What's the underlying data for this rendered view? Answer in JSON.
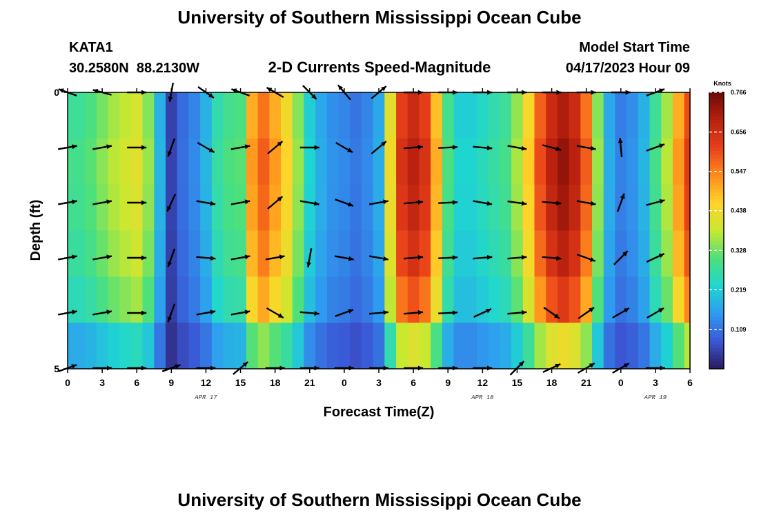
{
  "header": {
    "title": "University of Southern Mississippi Ocean Cube",
    "station_id": "KATA1",
    "station_coords": "30.2580N  88.2130W",
    "plot_title": "2-D Currents Speed-Magnitude",
    "model_start_label": "Model Start Time",
    "model_start_value": "04/17/2023 Hour 09",
    "footer_title": "University of Southern Mississippi Ocean Cube"
  },
  "chart_data": {
    "type": "heatmap",
    "title": "2-D Currents Speed-Magnitude",
    "xlabel": "Forecast Time(Z)",
    "ylabel": "Depth (ft)",
    "x_tick_labels": [
      "0",
      "3",
      "6",
      "9",
      "12",
      "15",
      "18",
      "21",
      "0",
      "3",
      "6",
      "9",
      "12",
      "15",
      "18",
      "21",
      "0",
      "3",
      "6"
    ],
    "date_labels": [
      "APR 17",
      "APR 18",
      "APR 19"
    ],
    "date_label_hours": [
      12,
      36,
      51
    ],
    "y_tick_labels": [
      "0",
      "5"
    ],
    "ylim": [
      5,
      0
    ],
    "xlim_hours": [
      0,
      54
    ],
    "colorbar": {
      "unit": "Knots",
      "min": 0.0,
      "max": 0.766,
      "ticks": [
        "0.766",
        "0.656",
        "0.547",
        "0.438",
        "0.328",
        "0.219",
        "0.109"
      ],
      "stops": [
        "#2a1a5e",
        "#3b57d6",
        "#2f9bf0",
        "#1fd6d0",
        "#4ee07a",
        "#c8e830",
        "#ffd42a",
        "#ff8a1c",
        "#e8401a",
        "#b8200e",
        "#6e0a06"
      ]
    },
    "depth_layers": 6,
    "time_columns_hours": [
      0,
      1,
      2,
      3,
      4,
      5,
      6,
      7,
      8,
      9,
      10,
      11,
      12,
      13,
      14,
      15,
      16,
      17,
      18,
      19,
      20,
      21,
      22,
      23,
      24,
      25,
      26,
      27,
      28,
      29,
      30,
      31,
      32,
      33,
      34,
      35,
      36,
      37,
      38,
      39,
      40,
      41,
      42,
      43,
      44,
      45,
      46,
      47,
      48,
      49,
      50,
      51,
      52,
      53,
      54
    ],
    "speed_profile_knots": [
      0.28,
      0.28,
      0.3,
      0.33,
      0.36,
      0.38,
      0.4,
      0.34,
      0.18,
      0.05,
      0.1,
      0.13,
      0.18,
      0.26,
      0.29,
      0.3,
      0.5,
      0.56,
      0.5,
      0.44,
      0.34,
      0.22,
      0.17,
      0.14,
      0.13,
      0.11,
      0.13,
      0.17,
      0.42,
      0.62,
      0.66,
      0.62,
      0.48,
      0.29,
      0.22,
      0.22,
      0.24,
      0.26,
      0.28,
      0.35,
      0.45,
      0.58,
      0.66,
      0.7,
      0.66,
      0.56,
      0.34,
      0.17,
      0.12,
      0.14,
      0.18,
      0.28,
      0.36,
      0.5,
      0.6
    ],
    "depth_factors": [
      1.0,
      1.04,
      1.02,
      0.98,
      0.9,
      0.62
    ],
    "vectors": {
      "rows": [
        {
          "depth_label": "layer 0",
          "angles_deg": [
            -160,
            -165,
            0,
            100,
            35,
            -160,
            -150,
            45,
            -130,
            -40,
            0,
            0,
            0,
            0,
            0,
            0,
            0,
            -20
          ]
        },
        {
          "depth_label": "layer 1",
          "angles_deg": [
            -10,
            -10,
            0,
            110,
            30,
            -10,
            -40,
            0,
            30,
            -40,
            -5,
            -3,
            5,
            10,
            15,
            10,
            -95,
            -20
          ]
        },
        {
          "depth_label": "layer 2",
          "angles_deg": [
            -10,
            -10,
            0,
            115,
            10,
            -10,
            -40,
            10,
            20,
            -10,
            -5,
            -3,
            10,
            8,
            5,
            10,
            -70,
            -15
          ]
        },
        {
          "depth_label": "layer 3",
          "angles_deg": [
            -10,
            -10,
            0,
            110,
            5,
            -10,
            -10,
            100,
            10,
            10,
            -5,
            -3,
            -5,
            -5,
            5,
            20,
            -45,
            -25
          ]
        },
        {
          "depth_label": "layer 4",
          "angles_deg": [
            -10,
            -10,
            0,
            110,
            -10,
            -10,
            30,
            5,
            -20,
            -5,
            -5,
            -3,
            -25,
            -5,
            35,
            -35,
            -30,
            -30
          ]
        },
        {
          "depth_label": "layer 5",
          "angles_deg": [
            -20,
            0,
            0,
            -20,
            0,
            -40,
            0,
            0,
            0,
            0,
            0,
            0,
            0,
            -45,
            -25,
            -30,
            -30,
            0
          ]
        }
      ]
    }
  }
}
